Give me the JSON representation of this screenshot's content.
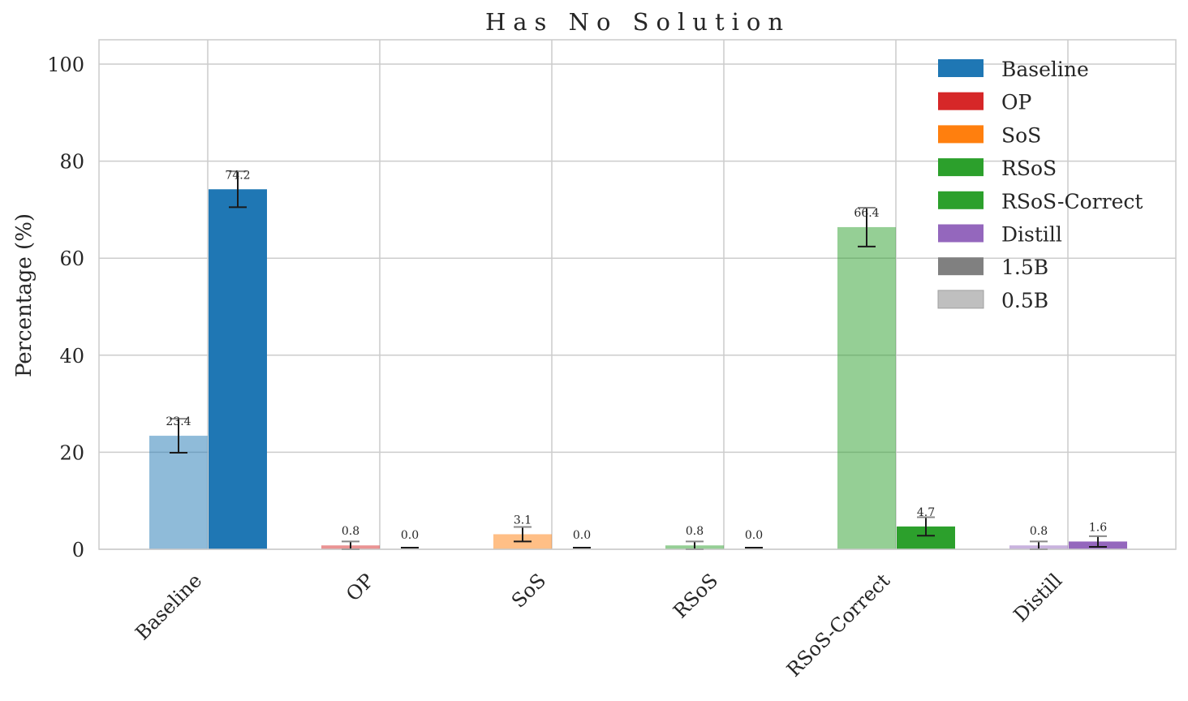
{
  "chart_data": {
    "type": "bar",
    "title": "Has No Solution",
    "xlabel": "",
    "ylabel": "Percentage (%)",
    "ylim": [
      0,
      105
    ],
    "yticks": [
      0,
      20,
      40,
      60,
      80,
      100
    ],
    "grid": true,
    "legend_position": "top-right",
    "categories": [
      "Baseline",
      "OP",
      "SoS",
      "RSoS",
      "RSoS-Correct",
      "Distill"
    ],
    "category_colors": [
      "#1f77b4",
      "#d62728",
      "#ff7f0e",
      "#2ca02c",
      "#2ca02c",
      "#9467bd"
    ],
    "series": [
      {
        "name": "0.5B",
        "opacity": 0.5,
        "values": [
          23.4,
          0.8,
          3.1,
          0.8,
          66.4,
          0.8
        ],
        "error": [
          3.5,
          0.8,
          1.5,
          0.8,
          4.0,
          0.8
        ]
      },
      {
        "name": "1.5B",
        "opacity": 1.0,
        "values": [
          74.2,
          0.0,
          0.0,
          0.0,
          4.7,
          1.6
        ],
        "error": [
          3.7,
          0.0,
          0.0,
          0.0,
          1.9,
          1.1
        ]
      }
    ],
    "legend": [
      {
        "label": "Baseline",
        "color": "#1f77b4",
        "opacity": 1.0
      },
      {
        "label": "OP",
        "color": "#d62728",
        "opacity": 1.0
      },
      {
        "label": "SoS",
        "color": "#ff7f0e",
        "opacity": 1.0
      },
      {
        "label": "RSoS",
        "color": "#2ca02c",
        "opacity": 1.0
      },
      {
        "label": "RSoS-Correct",
        "color": "#2ca02c",
        "opacity": 1.0
      },
      {
        "label": "Distill",
        "color": "#9467bd",
        "opacity": 1.0
      },
      {
        "label": "1.5B",
        "color": "#808080",
        "opacity": 1.0
      },
      {
        "label": "0.5B",
        "color": "#808080",
        "opacity": 0.5
      }
    ]
  }
}
